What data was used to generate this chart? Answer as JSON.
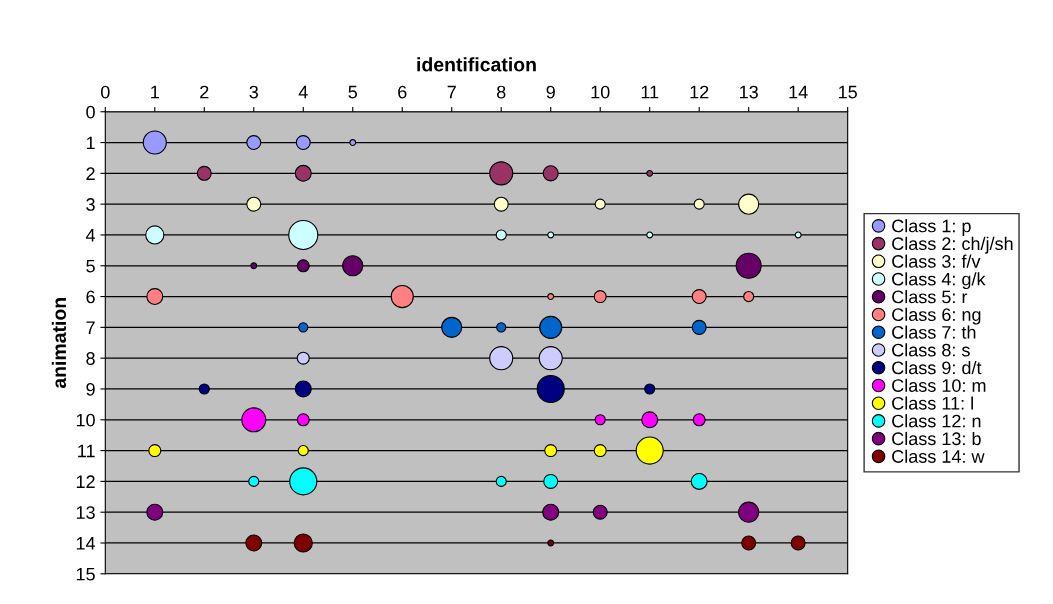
{
  "chart_data": {
    "type": "bubble",
    "xlabel": "identification",
    "ylabel": "animation",
    "xlim": [
      0,
      15
    ],
    "xticks": [
      0,
      1,
      2,
      3,
      4,
      5,
      6,
      7,
      8,
      9,
      10,
      11,
      12,
      13,
      14,
      15
    ],
    "ylim": [
      15,
      0
    ],
    "yticks": [
      0,
      1,
      2,
      3,
      4,
      5,
      6,
      7,
      8,
      9,
      10,
      11,
      12,
      13,
      14,
      15
    ],
    "grid": "y",
    "legend": "right",
    "series": [
      {
        "name": "Class 1: p",
        "color": "#9999ff",
        "x": [
          1,
          3,
          4,
          5
        ],
        "values": [
          1,
          1,
          1,
          1
        ],
        "sizes": [
          0.63,
          0.23,
          0.23,
          0.04
        ]
      },
      {
        "name": "Class 2: ch/j/sh",
        "color": "#993366",
        "x": [
          2,
          4,
          8,
          9,
          11
        ],
        "values": [
          2,
          2,
          2,
          2,
          2
        ],
        "sizes": [
          0.23,
          0.3,
          0.63,
          0.27,
          0.04
        ]
      },
      {
        "name": "Class 3: f/v",
        "color": "#ffffcc",
        "x": [
          3,
          8,
          10,
          12,
          13
        ],
        "values": [
          3,
          3,
          3,
          3,
          3
        ],
        "sizes": [
          0.23,
          0.23,
          0.12,
          0.12,
          0.48
        ]
      },
      {
        "name": "Class 4: g/k",
        "color": "#ccffff",
        "x": [
          1,
          4,
          8,
          9,
          11,
          14
        ],
        "values": [
          4,
          4,
          4,
          4,
          4,
          4
        ],
        "sizes": [
          0.39,
          1,
          0.12,
          0.04,
          0.04,
          0.04
        ]
      },
      {
        "name": "Class 5: r",
        "color": "#660066",
        "x": [
          3,
          4,
          5,
          13
        ],
        "values": [
          5,
          5,
          5,
          5
        ],
        "sizes": [
          0.04,
          0.17,
          0.48,
          0.74
        ]
      },
      {
        "name": "Class 6: ng",
        "color": "#ff8080",
        "x": [
          1,
          6,
          9,
          10,
          12,
          13
        ],
        "values": [
          6,
          6,
          6,
          6,
          6,
          6
        ],
        "sizes": [
          0.3,
          0.58,
          0.04,
          0.17,
          0.23,
          0.12
        ]
      },
      {
        "name": "Class 7: th",
        "color": "#0066cc",
        "x": [
          4,
          7,
          8,
          9,
          12
        ],
        "values": [
          7,
          7,
          7,
          7,
          7
        ],
        "sizes": [
          0.1,
          0.48,
          0.1,
          0.58,
          0.23
        ]
      },
      {
        "name": "Class 8: s",
        "color": "#ccccff",
        "x": [
          4,
          8,
          9
        ],
        "values": [
          8,
          8,
          8
        ],
        "sizes": [
          0.17,
          0.63,
          0.63
        ]
      },
      {
        "name": "Class 9: d/t",
        "color": "#000080",
        "x": [
          2,
          4,
          9,
          11
        ],
        "values": [
          9,
          9,
          9,
          9
        ],
        "sizes": [
          0.12,
          0.3,
          0.87,
          0.12
        ]
      },
      {
        "name": "Class 10: m",
        "color": "#ff00ff",
        "x": [
          3,
          4,
          10,
          11,
          12
        ],
        "values": [
          10,
          10,
          10,
          10,
          10
        ],
        "sizes": [
          0.68,
          0.17,
          0.12,
          0.3,
          0.17
        ]
      },
      {
        "name": "Class 11: l",
        "color": "#ffff00",
        "x": [
          1,
          4,
          9,
          10,
          11
        ],
        "values": [
          11,
          11,
          11,
          11,
          11
        ],
        "sizes": [
          0.17,
          0.12,
          0.17,
          0.17,
          0.87
        ]
      },
      {
        "name": "Class 12: n",
        "color": "#00ffff",
        "x": [
          3,
          4,
          8,
          9,
          12
        ],
        "values": [
          12,
          12,
          12,
          12,
          12
        ],
        "sizes": [
          0.12,
          0.87,
          0.12,
          0.23,
          0.3
        ]
      },
      {
        "name": "Class 13: b",
        "color": "#800080",
        "x": [
          1,
          9,
          10,
          13
        ],
        "values": [
          13,
          13,
          13,
          13
        ],
        "sizes": [
          0.3,
          0.3,
          0.23,
          0.48
        ]
      },
      {
        "name": "Class 14: w",
        "color": "#800000",
        "x": [
          3,
          4,
          9,
          13,
          14
        ],
        "values": [
          14,
          14,
          14,
          14,
          14
        ],
        "sizes": [
          0.3,
          0.39,
          0.04,
          0.23,
          0.23
        ]
      }
    ]
  }
}
